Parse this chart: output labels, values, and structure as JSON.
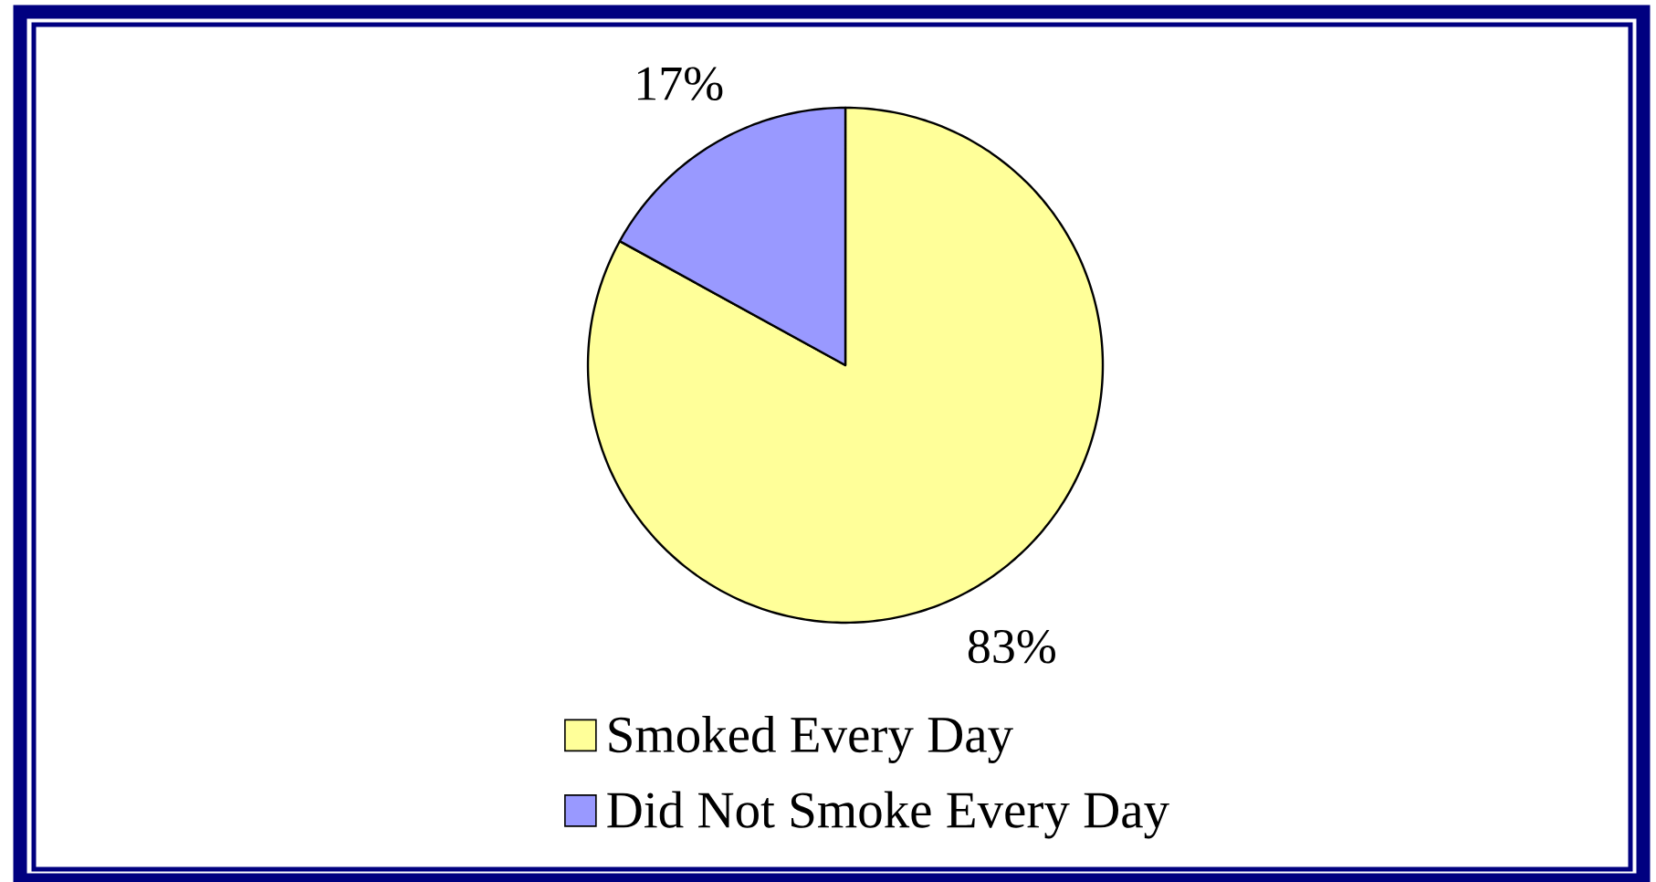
{
  "chart_data": {
    "type": "pie",
    "categories": [
      "Smoked Every Day",
      "Did Not Smoke Every Day"
    ],
    "values": [
      83,
      17
    ],
    "colors": [
      "#ffff99",
      "#9999ff"
    ],
    "value_labels": [
      "83%",
      "17%"
    ],
    "legend": "bottom"
  }
}
